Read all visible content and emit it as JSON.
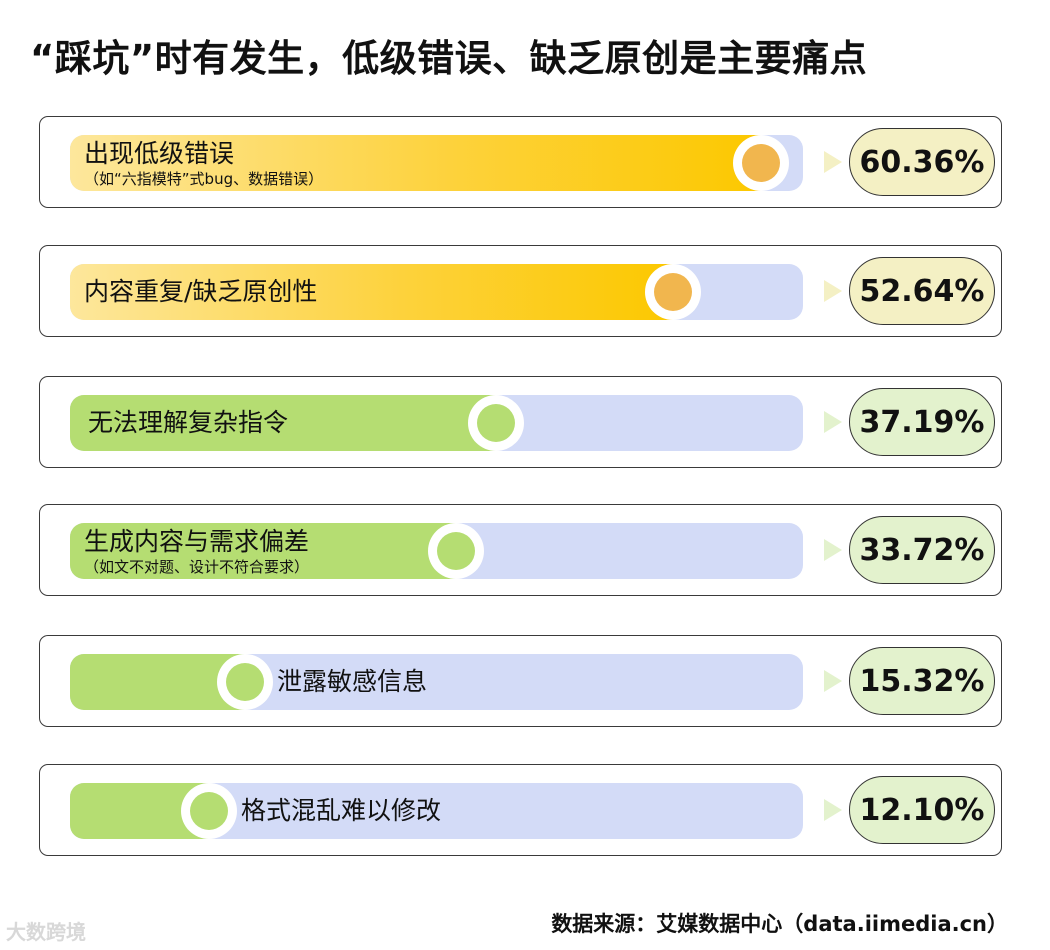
{
  "header": {
    "title": "“踩坑”时有发生，低级错误、缺乏原创是主要痛点"
  },
  "footer": {
    "source": "数据来源：艾媒数据中心（data.iimedia.cn）",
    "watermark": "大数跨境"
  },
  "colors": {
    "high_fill": "#fcc800",
    "high_knob": "#f1b64e",
    "low_fill": "#b5dd72",
    "track": "#d3dbf7"
  },
  "chart_data": {
    "type": "bar",
    "orientation": "horizontal",
    "title": "“踩坑”时有发生，低级错误、缺乏原创是主要痛点",
    "unit": "%",
    "xlim": [
      0,
      100
    ],
    "grid": false,
    "categories": [
      "出现低级错误",
      "内容重复/缺乏原创性",
      "无法理解复杂指令",
      "生成内容与需求偏差",
      "泄露敏感信息",
      "格式混乱难以修改"
    ],
    "subtitles": [
      "（如“六指模特”式bug、数据错误）",
      "",
      "",
      "（如文不对题、设计不符合要求）",
      "",
      ""
    ],
    "values": [
      60.36,
      52.64,
      37.19,
      33.72,
      15.32,
      12.1
    ],
    "value_labels": [
      "60.36%",
      "52.64%",
      "37.19%",
      "33.72%",
      "15.32%",
      "12.10%"
    ],
    "tiers": [
      "high",
      "high",
      "low",
      "low",
      "low",
      "low"
    ],
    "scale_max": 64
  }
}
